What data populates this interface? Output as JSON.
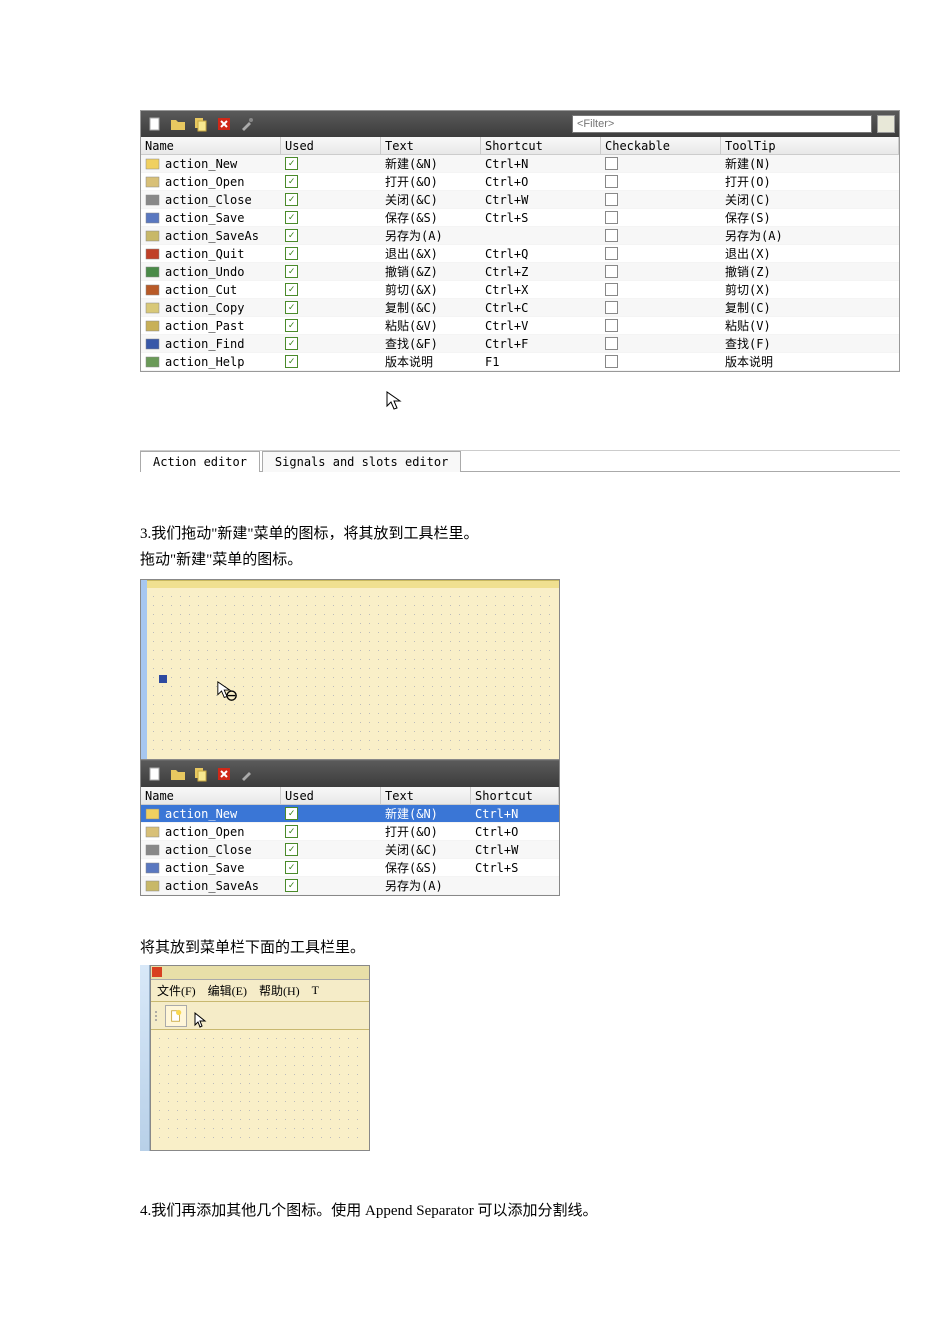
{
  "filter_placeholder": "<Filter>",
  "headers": {
    "name": "Name",
    "used": "Used",
    "text": "Text",
    "shortcut": "Shortcut",
    "checkable": "Checkable",
    "tooltip": "ToolTip"
  },
  "actions": [
    {
      "name": "action_New",
      "text": "新建(&N)",
      "shortcut": "Ctrl+N",
      "tooltip": "新建(N)",
      "icon_color": "#f0d060"
    },
    {
      "name": "action_Open",
      "text": "打开(&O)",
      "shortcut": "Ctrl+O",
      "tooltip": "打开(O)",
      "icon_color": "#d8c078"
    },
    {
      "name": "action_Close",
      "text": "关闭(&C)",
      "shortcut": "Ctrl+W",
      "tooltip": "关闭(C)",
      "icon_color": "#888888"
    },
    {
      "name": "action_Save",
      "text": "保存(&S)",
      "shortcut": "Ctrl+S",
      "tooltip": "保存(S)",
      "icon_color": "#5a78c0"
    },
    {
      "name": "action_SaveAs",
      "text": "另存为(A)",
      "shortcut": "",
      "tooltip": "另存为(A)",
      "icon_color": "#c8b868"
    },
    {
      "name": "action_Quit",
      "text": "退出(&X)",
      "shortcut": "Ctrl+Q",
      "tooltip": "退出(X)",
      "icon_color": "#c04028"
    },
    {
      "name": "action_Undo",
      "text": "撤销(&Z)",
      "shortcut": "Ctrl+Z",
      "tooltip": "撤销(Z)",
      "icon_color": "#4a8a48"
    },
    {
      "name": "action_Cut",
      "text": "剪切(&X)",
      "shortcut": "Ctrl+X",
      "tooltip": "剪切(X)",
      "icon_color": "#b85a28"
    },
    {
      "name": "action_Copy",
      "text": "复制(&C)",
      "shortcut": "Ctrl+C",
      "tooltip": "复制(C)",
      "icon_color": "#d8c878"
    },
    {
      "name": "action_Past",
      "text": "粘贴(&V)",
      "shortcut": "Ctrl+V",
      "tooltip": "粘贴(V)",
      "icon_color": "#c8b058"
    },
    {
      "name": "action_Find",
      "text": "查找(&F)",
      "shortcut": "Ctrl+F",
      "tooltip": "查找(F)",
      "icon_color": "#3858a8"
    },
    {
      "name": "action_Help",
      "text": "版本说明",
      "shortcut": "F1",
      "tooltip": "版本说明",
      "icon_color": "#6a9a58"
    }
  ],
  "tabs": {
    "action_editor": "Action editor",
    "signals": "Signals and slots editor"
  },
  "step3_line1": "3.我们拖动\"新建\"菜单的图标，将其放到工具栏里。",
  "step3_line2": "拖动\"新建\"菜单的图标。",
  "actions2": [
    {
      "name": "action_New",
      "text": "新建(&N)",
      "shortcut": "Ctrl+N",
      "selected": true,
      "icon_color": "#f0d060"
    },
    {
      "name": "action_Open",
      "text": "打开(&O)",
      "shortcut": "Ctrl+O",
      "selected": false,
      "icon_color": "#d8c078"
    },
    {
      "name": "action_Close",
      "text": "关闭(&C)",
      "shortcut": "Ctrl+W",
      "selected": false,
      "icon_color": "#888888"
    },
    {
      "name": "action_Save",
      "text": "保存(&S)",
      "shortcut": "Ctrl+S",
      "selected": false,
      "icon_color": "#5a78c0"
    },
    {
      "name": "action_SaveAs",
      "text": "另存为(A)",
      "shortcut": "",
      "selected": false,
      "icon_color": "#c8b868"
    }
  ],
  "step3_line3": "将其放到菜单栏下面的工具栏里。",
  "menubar": {
    "file": "文件(F)",
    "edit": "编辑(E)",
    "help": "帮助(H)",
    "extra": "T"
  },
  "step4": "4.我们再添加其他几个图标。使用 Append Separator 可以添加分割线。"
}
